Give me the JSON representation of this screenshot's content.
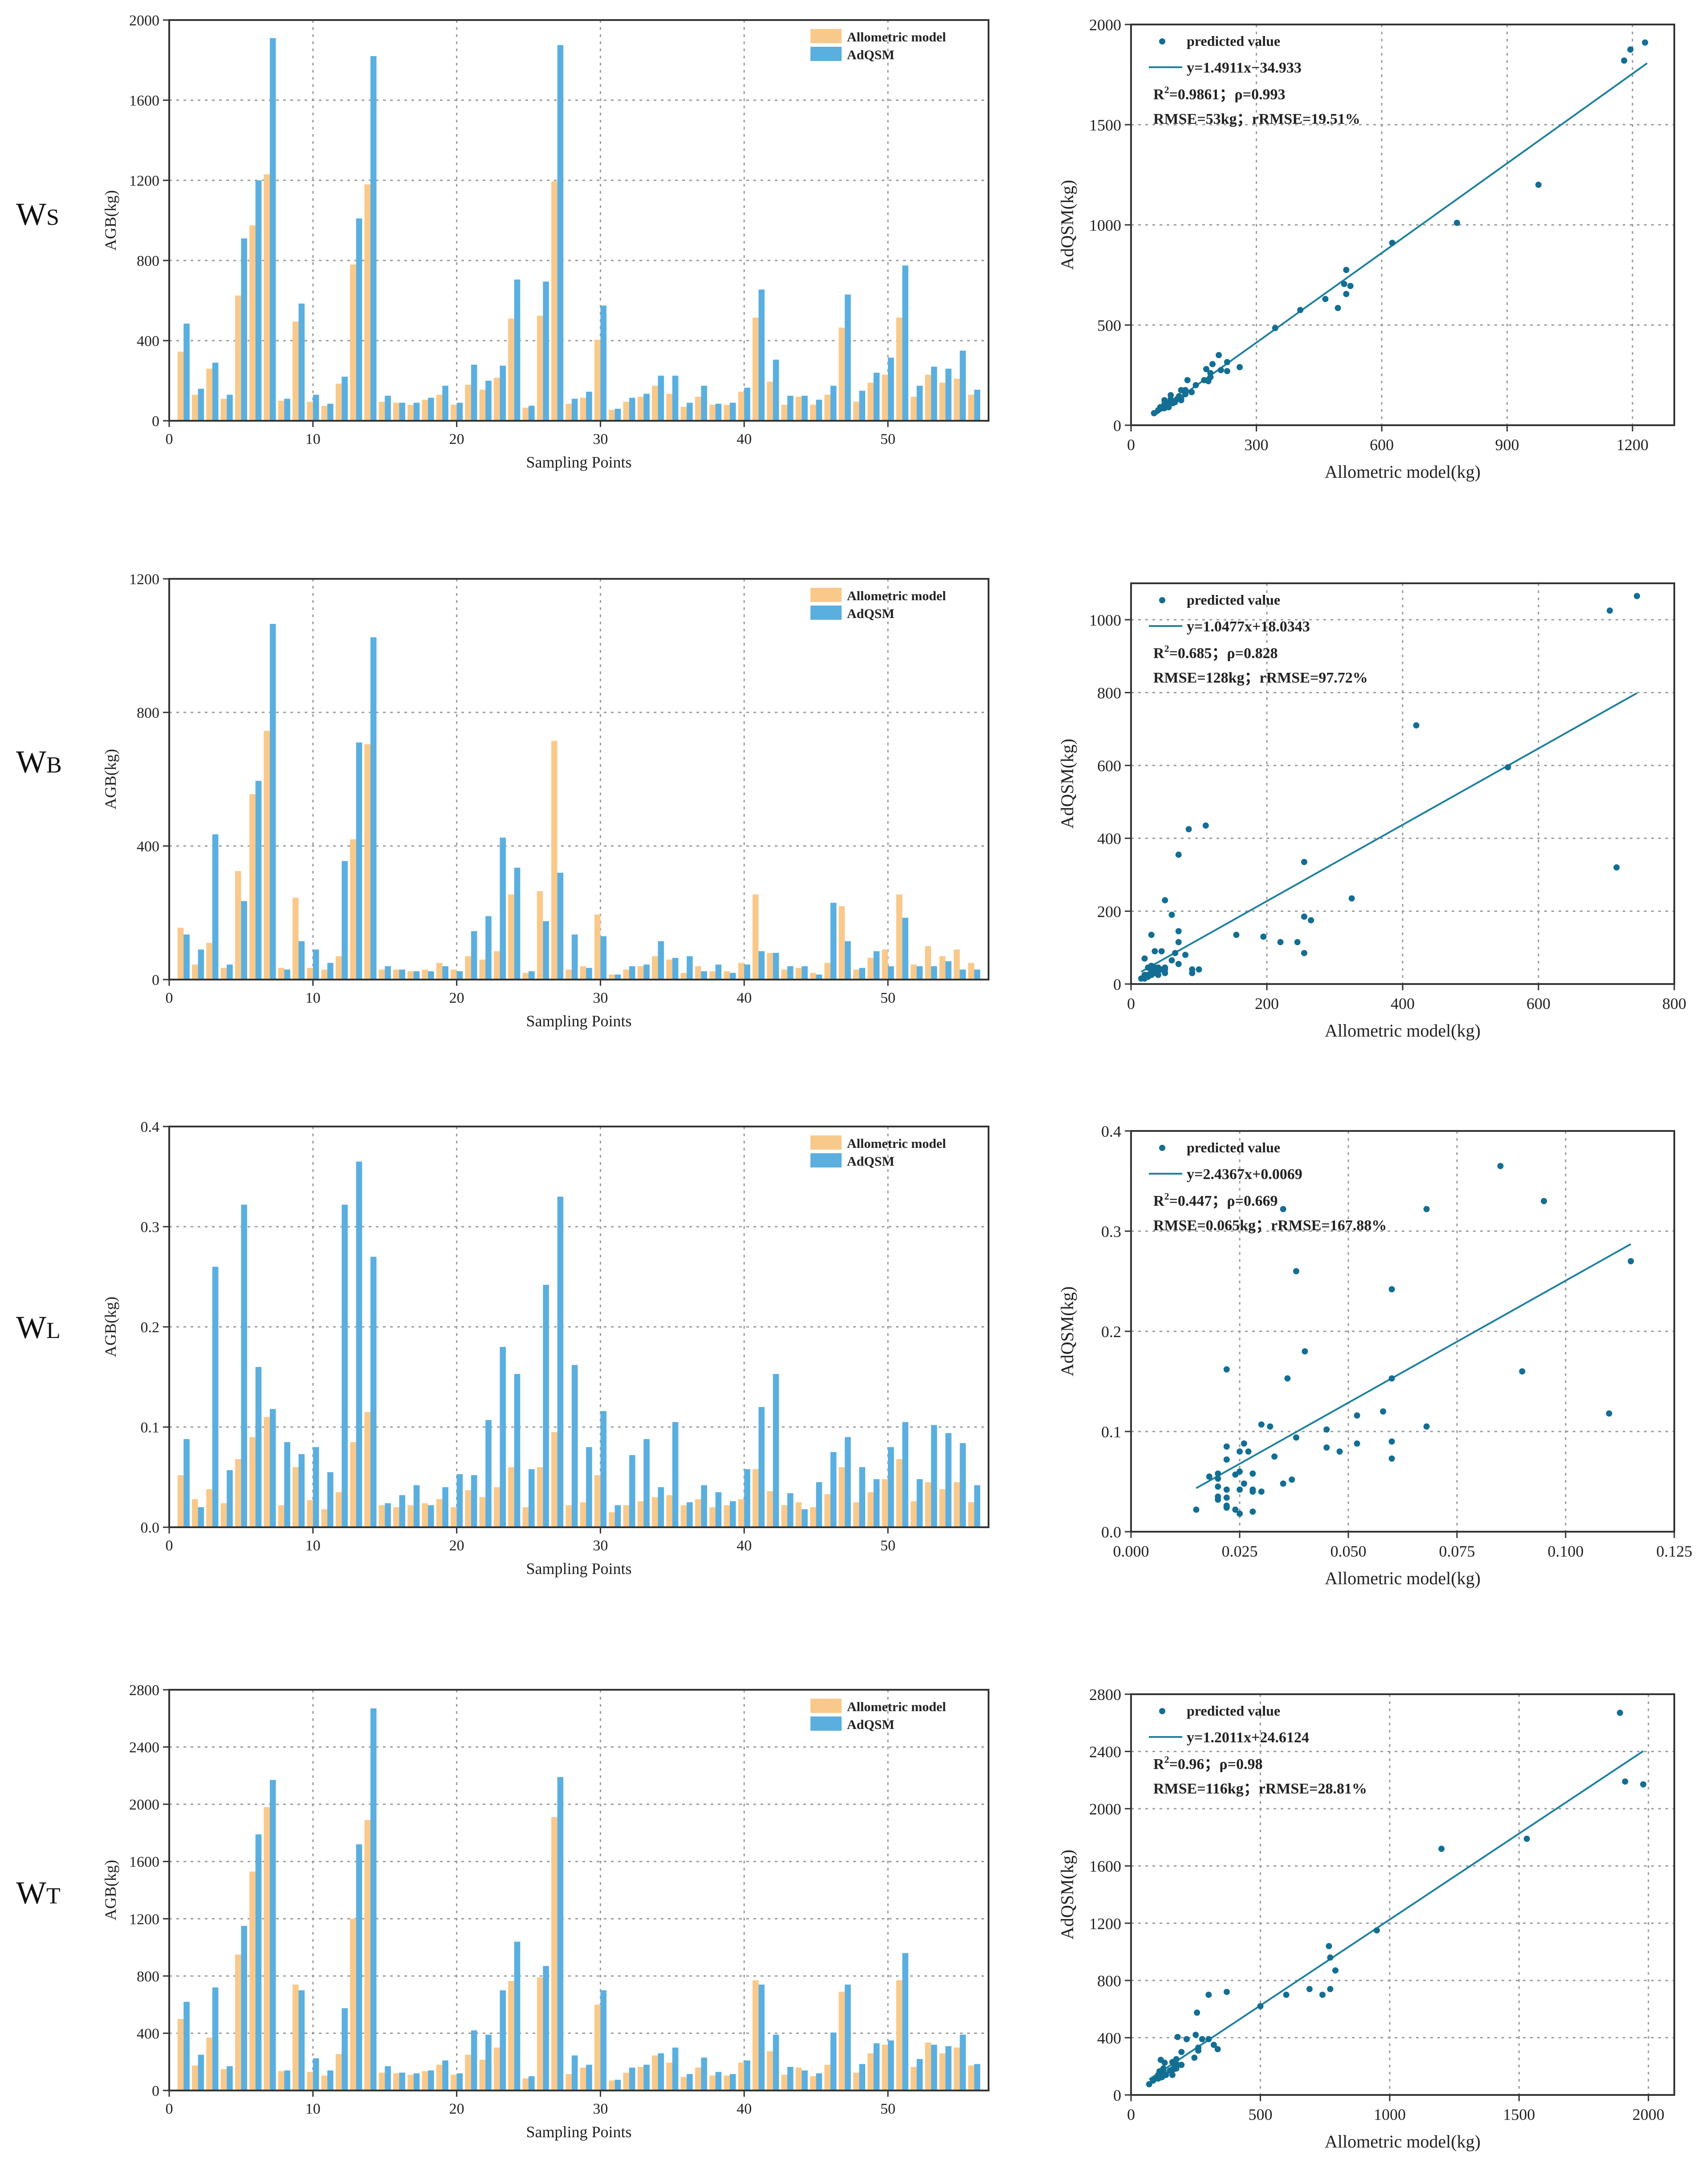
{
  "colors": {
    "allometric": "#F9C98B",
    "adqsm": "#5AAFDF",
    "fit": "#1E80A0",
    "point": "#136E94",
    "grid": "#9A9A9A"
  },
  "panels": [
    {
      "row_label": {
        "main": "W",
        "sub": "S"
      },
      "bar": {
        "type": "bar",
        "xlabel": "Sampling Points",
        "ylabel": "AGB(kg)",
        "xlim": [
          0,
          57
        ],
        "ylim": [
          0,
          2000
        ],
        "yticks": [
          "0",
          "400",
          "800",
          "1200",
          "1600",
          "2000"
        ],
        "xticks": [
          "0",
          "10",
          "20",
          "30",
          "40",
          "50"
        ],
        "legend": [
          "Allometric model",
          "AdQSM"
        ],
        "legend_position": "top-right",
        "x": [
          1,
          2,
          3,
          4,
          5,
          6,
          7,
          8,
          9,
          10,
          11,
          12,
          13,
          14,
          15,
          16,
          17,
          18,
          19,
          20,
          21,
          22,
          23,
          24,
          25,
          26,
          27,
          28,
          29,
          30,
          31,
          32,
          33,
          34,
          35,
          36,
          37,
          38,
          39,
          40,
          41,
          42,
          43,
          44,
          45,
          46,
          47,
          48,
          49,
          50,
          51,
          52,
          53,
          54,
          55,
          56
        ],
        "series": [
          {
            "name": "Allometric model",
            "values": [
              345,
              130,
              260,
              110,
              625,
              975,
              1230,
              100,
              495,
              95,
              75,
              185,
              780,
              1180,
              95,
              90,
              80,
              105,
              130,
              80,
              180,
              155,
              215,
              510,
              65,
              525,
              1195,
              85,
              115,
              405,
              55,
              95,
              120,
              175,
              135,
              70,
              120,
              80,
              80,
              145,
              515,
              195,
              80,
              120,
              80,
              130,
              465,
              95,
              190,
              230,
              515,
              120,
              230,
              190,
              210,
              130
            ],
            "values_note": ""
          },
          {
            "name": "AdQSM",
            "values": [
              485,
              160,
              290,
              130,
              910,
              1200,
              1910,
              110,
              585,
              130,
              85,
              220,
              1010,
              1820,
              125,
              90,
              90,
              115,
              175,
              90,
              280,
              200,
              275,
              705,
              75,
              695,
              1875,
              110,
              145,
              575,
              60,
              115,
              135,
              225,
              225,
              90,
              175,
              85,
              90,
              165,
              655,
              305,
              125,
              125,
              105,
              175,
              630,
              150,
              240,
              315,
              775,
              175,
              270,
              260,
              350,
              155
            ]
          }
        ]
      },
      "scatter": {
        "type": "scatter",
        "xlabel": "Allometric model(kg)",
        "ylabel": "AdQSM(kg)",
        "xlim": [
          0,
          1300
        ],
        "ylim": [
          0,
          2000
        ],
        "xticks": [
          "0",
          "300",
          "600",
          "900",
          "1200"
        ],
        "yticks": [
          "0",
          "500",
          "1000",
          "1500",
          "2000"
        ],
        "legend": "predicted value",
        "equation": "y=1.4911x−34.933",
        "r2_label": "R",
        "r2_sup": "2",
        "r2_value": "=0.9861；ρ=0.993",
        "rmse": "RMSE=53kg；rRMSE=19.51%",
        "fit": {
          "slope": 1.4911,
          "intercept": -34.933,
          "x_range": [
            60,
            1235
          ]
        }
      }
    },
    {
      "row_label": {
        "main": "W",
        "sub": "B"
      },
      "bar": {
        "type": "bar",
        "xlabel": "Sampling Points",
        "ylabel": "AGB(kg)",
        "xlim": [
          0,
          57
        ],
        "ylim": [
          0,
          1200
        ],
        "yticks": [
          "0",
          "400",
          "800",
          "1200"
        ],
        "xticks": [
          "0",
          "10",
          "20",
          "30",
          "40",
          "50"
        ],
        "legend": [
          "Allometric model",
          "AdQSM"
        ],
        "legend_position": "top-right",
        "x": [
          1,
          2,
          3,
          4,
          5,
          6,
          7,
          8,
          9,
          10,
          11,
          12,
          13,
          14,
          15,
          16,
          17,
          18,
          19,
          20,
          21,
          22,
          23,
          24,
          25,
          26,
          27,
          28,
          29,
          30,
          31,
          32,
          33,
          34,
          35,
          36,
          37,
          38,
          39,
          40,
          41,
          42,
          43,
          44,
          45,
          46,
          47,
          48,
          49,
          50,
          51,
          52,
          53,
          54,
          55,
          56
        ],
        "series": [
          {
            "name": "Allometric model",
            "values": [
              155,
              45,
              110,
              35,
              325,
              555,
              745,
              35,
              245,
              35,
              30,
              70,
              420,
              705,
              30,
              30,
              25,
              30,
              50,
              30,
              70,
              60,
              85,
              255,
              20,
              265,
              715,
              30,
              40,
              195,
              15,
              30,
              40,
              70,
              60,
              20,
              40,
              25,
              25,
              50,
              255,
              80,
              30,
              35,
              20,
              50,
              220,
              30,
              65,
              90,
              255,
              45,
              100,
              70,
              90,
              50
            ],
            "values_note": ""
          },
          {
            "name": "AdQSM",
            "values": [
              135,
              90,
              435,
              45,
              235,
              595,
              1065,
              30,
              115,
              90,
              50,
              355,
              710,
              1025,
              40,
              30,
              25,
              25,
              40,
              25,
              145,
              190,
              425,
              335,
              25,
              175,
              320,
              135,
              35,
              130,
              15,
              40,
              45,
              115,
              65,
              70,
              25,
              45,
              20,
              45,
              85,
              80,
              40,
              40,
              15,
              230,
              115,
              35,
              85,
              40,
              185,
              40,
              40,
              55,
              30,
              30
            ]
          }
        ]
      },
      "scatter": {
        "type": "scatter",
        "xlabel": "Allometric model(kg)",
        "ylabel": "AdQSM(kg)",
        "xlim": [
          0,
          800
        ],
        "ylim": [
          0,
          1100
        ],
        "xticks": [
          "0",
          "200",
          "400",
          "600",
          "800"
        ],
        "yticks": [
          "0",
          "200",
          "400",
          "600",
          "800",
          "1000"
        ],
        "legend": "predicted value",
        "equation": "y=1.0477x+18.0343",
        "r2_label": "R",
        "r2_sup": "2",
        "r2_value": "=0.685；ρ=0.828",
        "rmse": "RMSE=128kg；rRMSE=97.72%",
        "fit": {
          "slope": 1.0477,
          "intercept": 18.0343,
          "x_range": [
            15,
            745
          ]
        }
      }
    },
    {
      "row_label": {
        "main": "W",
        "sub": "L"
      },
      "bar": {
        "type": "bar",
        "xlabel": "Sampling Points",
        "ylabel": "AGB(kg)",
        "xlim": [
          0,
          57
        ],
        "ylim": [
          0,
          0.4
        ],
        "yticks": [
          "0.0",
          "0.1",
          "0.2",
          "0.3",
          "0.4"
        ],
        "xticks": [
          "0",
          "10",
          "20",
          "30",
          "40",
          "50"
        ],
        "legend": [
          "Allometric model",
          "AdQSM"
        ],
        "legend_position": "top-right",
        "x": [
          1,
          2,
          3,
          4,
          5,
          6,
          7,
          8,
          9,
          10,
          11,
          12,
          13,
          14,
          15,
          16,
          17,
          18,
          19,
          20,
          21,
          22,
          23,
          24,
          25,
          26,
          27,
          28,
          29,
          30,
          31,
          32,
          33,
          34,
          35,
          36,
          37,
          38,
          39,
          40,
          41,
          42,
          43,
          44,
          45,
          46,
          47,
          48,
          49,
          50,
          51,
          52,
          53,
          54,
          55,
          56
        ],
        "series": [
          {
            "name": "Allometric model",
            "values": [
              0.052,
              0.028,
              0.038,
              0.024,
              0.068,
              0.09,
              0.11,
              0.022,
              0.06,
              0.027,
              0.018,
              0.035,
              0.085,
              0.115,
              0.022,
              0.02,
              0.022,
              0.024,
              0.028,
              0.02,
              0.037,
              0.03,
              0.04,
              0.06,
              0.02,
              0.06,
              0.095,
              0.022,
              0.025,
              0.052,
              0.015,
              0.022,
              0.026,
              0.03,
              0.032,
              0.022,
              0.028,
              0.02,
              0.022,
              0.028,
              0.058,
              0.036,
              0.022,
              0.025,
              0.02,
              0.033,
              0.06,
              0.025,
              0.035,
              0.048,
              0.068,
              0.026,
              0.045,
              0.038,
              0.045,
              0.025
            ],
            "values_note": ""
          },
          {
            "name": "AdQSM",
            "values": [
              0.088,
              0.02,
              0.26,
              0.057,
              0.322,
              0.16,
              0.118,
              0.085,
              0.073,
              0.08,
              0.055,
              0.322,
              0.365,
              0.27,
              0.024,
              0.032,
              0.042,
              0.022,
              0.04,
              0.053,
              0.052,
              0.107,
              0.18,
              0.153,
              0.058,
              0.242,
              0.33,
              0.162,
              0.08,
              0.116,
              0.022,
              0.072,
              0.088,
              0.04,
              0.105,
              0.025,
              0.042,
              0.035,
              0.026,
              0.058,
              0.12,
              0.153,
              0.034,
              0.018,
              0.045,
              0.075,
              0.09,
              0.06,
              0.048,
              0.08,
              0.105,
              0.048,
              0.102,
              0.094,
              0.084,
              0.042
            ]
          }
        ]
      },
      "scatter": {
        "type": "scatter",
        "xlabel": "Allometric model(kg)",
        "ylabel": "AdQSM(kg)",
        "xlim": [
          0,
          0.125
        ],
        "ylim": [
          0,
          0.4
        ],
        "xticks": [
          "0.000",
          "0.025",
          "0.050",
          "0.075",
          "0.100",
          "0.125"
        ],
        "yticks": [
          "0.0",
          "0.1",
          "0.2",
          "0.3",
          "0.4"
        ],
        "legend": "predicted value",
        "equation": "y=2.4367x+0.0069",
        "r2_label": "R",
        "r2_sup": "2",
        "r2_value": "=0.447；ρ=0.669",
        "rmse": "RMSE=0.065kg；rRMSE=167.88%",
        "fit": {
          "slope": 2.4367,
          "intercept": 0.0069,
          "x_range": [
            0.015,
            0.115
          ]
        }
      }
    },
    {
      "row_label": {
        "main": "W",
        "sub": "T"
      },
      "bar": {
        "type": "bar",
        "xlabel": "Sampling Points",
        "ylabel": "AGB(kg)",
        "xlim": [
          0,
          57
        ],
        "ylim": [
          0,
          2800
        ],
        "yticks": [
          "0",
          "400",
          "800",
          "1200",
          "1600",
          "2000",
          "2400",
          "2800"
        ],
        "xticks": [
          "0",
          "10",
          "20",
          "30",
          "40",
          "50"
        ],
        "legend": [
          "Allometric model",
          "AdQSM"
        ],
        "legend_position": "top-right",
        "x": [
          1,
          2,
          3,
          4,
          5,
          6,
          7,
          8,
          9,
          10,
          11,
          12,
          13,
          14,
          15,
          16,
          17,
          18,
          19,
          20,
          21,
          22,
          23,
          24,
          25,
          26,
          27,
          28,
          29,
          30,
          31,
          32,
          33,
          34,
          35,
          36,
          37,
          38,
          39,
          40,
          41,
          42,
          43,
          44,
          45,
          46,
          47,
          48,
          49,
          50,
          51,
          52,
          53,
          54,
          55,
          56
        ],
        "series": [
          {
            "name": "Allometric model",
            "values": [
              500,
              175,
              370,
              150,
              950,
              1530,
              1980,
              135,
              740,
              130,
              105,
              255,
              1200,
              1890,
              125,
              120,
              110,
              135,
              180,
              110,
              250,
              215,
              300,
              765,
              85,
              790,
              1910,
              115,
              160,
              600,
              70,
              125,
              165,
              245,
              195,
              95,
              160,
              105,
              105,
              195,
              770,
              275,
              110,
              160,
              100,
              180,
              690,
              125,
              260,
              320,
              770,
              165,
              335,
              260,
              300,
              175
            ],
            "values_note": ""
          },
          {
            "name": "AdQSM",
            "values": [
              620,
              250,
              720,
              170,
              1150,
              1790,
              2170,
              140,
              700,
              225,
              140,
              575,
              1720,
              2670,
              170,
              125,
              120,
              140,
              210,
              120,
              420,
              390,
              700,
              1040,
              100,
              870,
              2190,
              245,
              180,
              700,
              75,
              160,
              180,
              260,
              300,
              115,
              230,
              130,
              115,
              210,
              740,
              390,
              165,
              140,
              120,
              405,
              740,
              185,
              330,
              350,
              960,
              220,
              320,
              310,
              390,
              185
            ]
          }
        ]
      },
      "scatter": {
        "type": "scatter",
        "xlabel": "Allometric model(kg)",
        "ylabel": "AdQSM(kg)",
        "xlim": [
          0,
          2100
        ],
        "ylim": [
          0,
          2800
        ],
        "xticks": [
          "0",
          "500",
          "1000",
          "1500",
          "2000"
        ],
        "yticks": [
          "0",
          "400",
          "800",
          "1200",
          "1600",
          "2000",
          "2400",
          "2800"
        ],
        "legend": "predicted value",
        "equation": "y=1.2011x+24.6124",
        "r2_label": "R",
        "r2_sup": "2",
        "r2_value": "=0.96；ρ=0.98",
        "rmse": "RMSE=116kg；rRMSE=28.81%",
        "fit": {
          "slope": 1.2011,
          "intercept": 24.6124,
          "x_range": [
            70,
            1980
          ]
        }
      }
    }
  ]
}
